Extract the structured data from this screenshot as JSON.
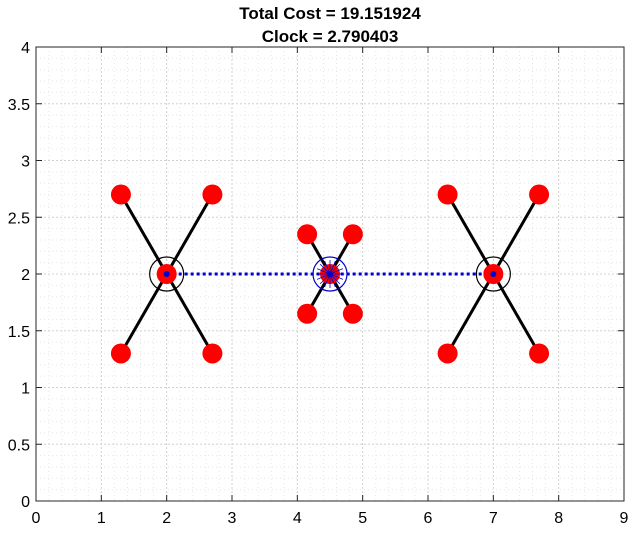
{
  "chart_data": {
    "type": "scatter",
    "title_lines": [
      "Total Cost = 19.151924",
      "Clock = 2.790403"
    ],
    "xlabel": "",
    "ylabel": "",
    "xlim": [
      0,
      9
    ],
    "ylim": [
      0,
      4
    ],
    "x_ticks": [
      "0",
      "1",
      "2",
      "3",
      "4",
      "5",
      "6",
      "7",
      "8",
      "9"
    ],
    "y_ticks": [
      "0",
      "0.5",
      "1",
      "1.5",
      "2",
      "2.5",
      "3",
      "3.5",
      "4"
    ],
    "grid": true,
    "colors": {
      "red_points": "#ff0000",
      "legs": "#000000",
      "connector": "#0000cc",
      "hub_circles": "#000000",
      "center_circle": "#0000cc"
    },
    "hubs": [
      {
        "x": 2.0,
        "y": 2.0,
        "circle": "black"
      },
      {
        "x": 4.5,
        "y": 2.0,
        "circle": "blue"
      },
      {
        "x": 7.0,
        "y": 2.0,
        "circle": "black"
      }
    ],
    "connector_line": {
      "x": [
        2.0,
        7.0
      ],
      "y": [
        2.0,
        2.0
      ],
      "style": "dotted"
    },
    "legs": [
      {
        "from": [
          2.0,
          2.0
        ],
        "to": [
          1.3,
          2.7
        ]
      },
      {
        "from": [
          2.0,
          2.0
        ],
        "to": [
          2.7,
          2.7
        ]
      },
      {
        "from": [
          2.0,
          2.0
        ],
        "to": [
          1.3,
          1.3
        ]
      },
      {
        "from": [
          2.0,
          2.0
        ],
        "to": [
          2.7,
          1.3
        ]
      },
      {
        "from": [
          4.5,
          2.0
        ],
        "to": [
          4.15,
          2.35
        ]
      },
      {
        "from": [
          4.5,
          2.0
        ],
        "to": [
          4.85,
          2.35
        ]
      },
      {
        "from": [
          4.5,
          2.0
        ],
        "to": [
          4.15,
          1.65
        ]
      },
      {
        "from": [
          4.5,
          2.0
        ],
        "to": [
          4.85,
          1.65
        ]
      },
      {
        "from": [
          7.0,
          2.0
        ],
        "to": [
          6.3,
          2.7
        ]
      },
      {
        "from": [
          7.0,
          2.0
        ],
        "to": [
          7.7,
          2.7
        ]
      },
      {
        "from": [
          7.0,
          2.0
        ],
        "to": [
          6.3,
          1.3
        ]
      },
      {
        "from": [
          7.0,
          2.0
        ],
        "to": [
          7.7,
          1.3
        ]
      }
    ],
    "points": [
      {
        "x": 1.3,
        "y": 2.7
      },
      {
        "x": 2.7,
        "y": 2.7
      },
      {
        "x": 1.3,
        "y": 1.3
      },
      {
        "x": 2.7,
        "y": 1.3
      },
      {
        "x": 4.15,
        "y": 2.35
      },
      {
        "x": 4.85,
        "y": 2.35
      },
      {
        "x": 4.15,
        "y": 1.65
      },
      {
        "x": 4.85,
        "y": 1.65
      },
      {
        "x": 6.3,
        "y": 2.7
      },
      {
        "x": 7.7,
        "y": 2.7
      },
      {
        "x": 6.3,
        "y": 1.3
      },
      {
        "x": 7.7,
        "y": 1.3
      },
      {
        "x": 2.0,
        "y": 2.0
      },
      {
        "x": 4.5,
        "y": 2.0
      },
      {
        "x": 7.0,
        "y": 2.0
      }
    ]
  }
}
